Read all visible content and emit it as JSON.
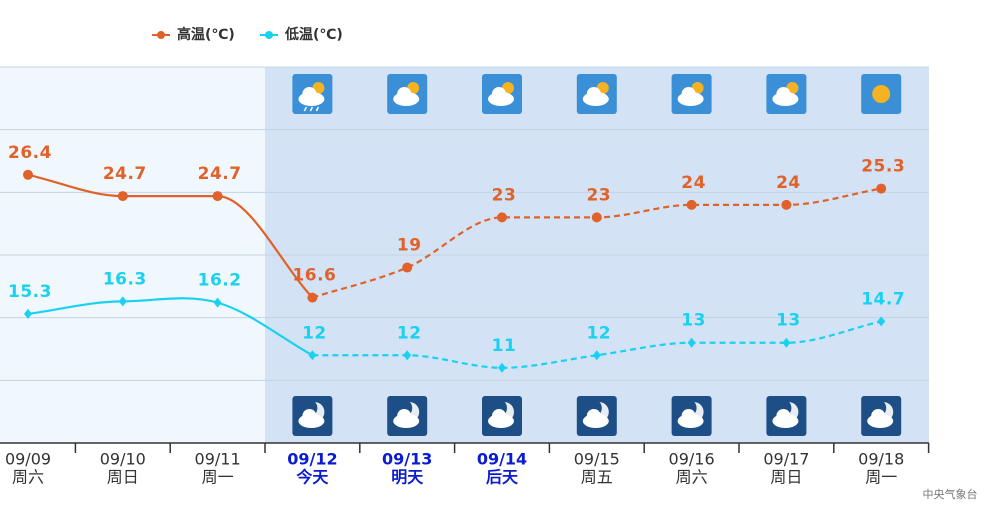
{
  "chart_data": {
    "type": "line",
    "categories": [
      "09/09",
      "09/10",
      "09/11",
      "09/12",
      "09/13",
      "09/14",
      "09/15",
      "09/16",
      "09/17",
      "09/18"
    ],
    "weekdays": [
      "周六",
      "周日",
      "周一",
      "今天",
      "明天",
      "后天",
      "周五",
      "周六",
      "周日",
      "周一"
    ],
    "series": [
      {
        "name": "高温(℃)",
        "color": "#e0622a",
        "marker": "circle",
        "values": [
          26.4,
          24.7,
          24.7,
          16.6,
          19,
          23,
          23,
          24,
          24,
          25.3
        ]
      },
      {
        "name": "低温(℃)",
        "color": "#19d2f0",
        "marker": "diamond",
        "values": [
          15.3,
          16.3,
          16.2,
          12,
          12,
          11,
          12,
          13,
          13,
          14.7
        ]
      }
    ],
    "ylim": [
      5,
      35
    ],
    "yticks": [
      10,
      15,
      20,
      25,
      30
    ],
    "grid": true,
    "forecast_start": "09/12",
    "highlight": [
      "09/12",
      "09/13",
      "09/14"
    ],
    "source": "中央气象台"
  }
}
